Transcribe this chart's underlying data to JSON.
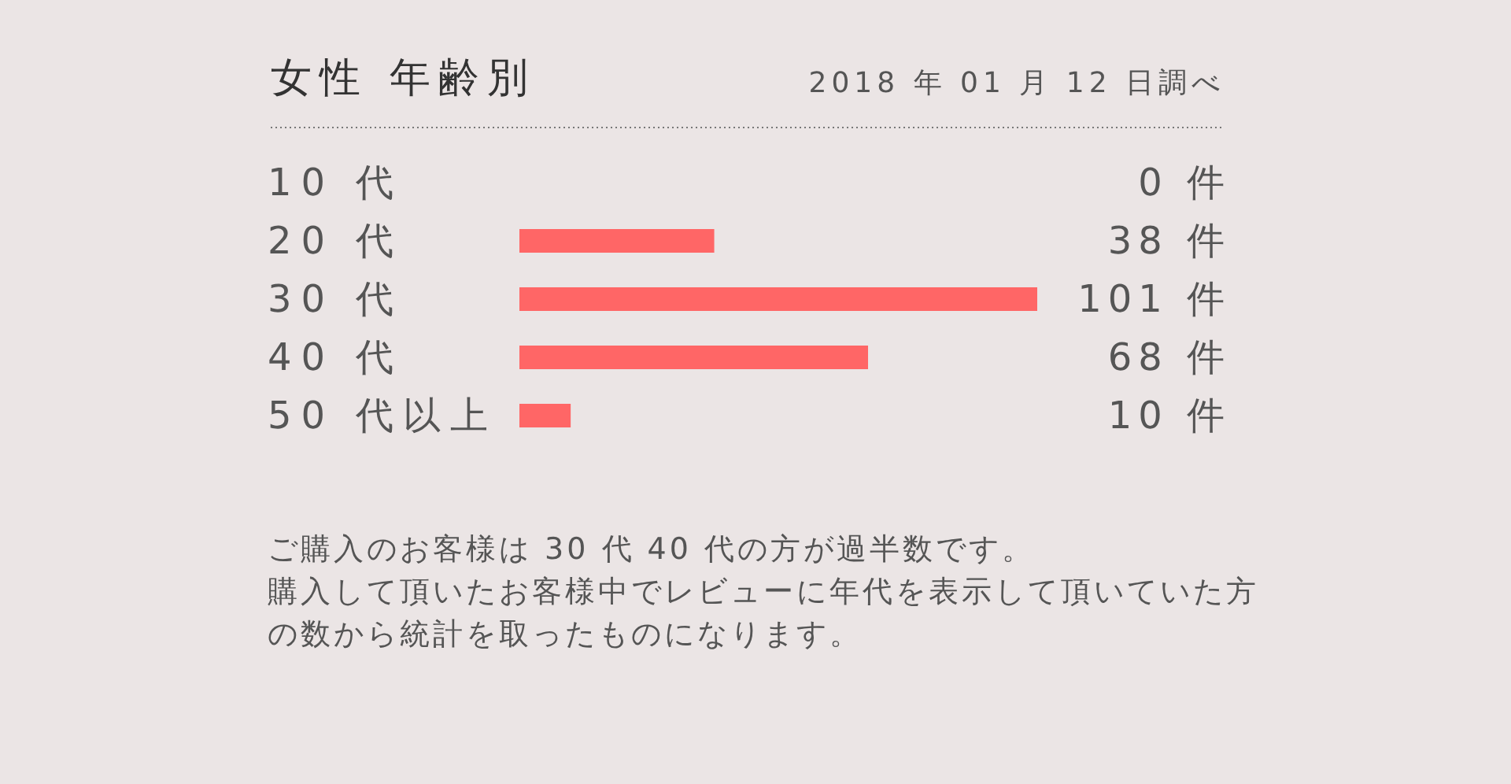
{
  "chart_data": {
    "type": "bar",
    "orientation": "horizontal",
    "title": "女性 年齢別",
    "subtitle": "2018 年 01 月 12 日調べ",
    "categories": [
      "10 代",
      "20 代",
      "30 代",
      "40 代",
      "50 代以上"
    ],
    "values": [
      0,
      38,
      101,
      68,
      10
    ],
    "value_labels": [
      "0 件",
      "38 件",
      "101 件",
      "68 件",
      "10 件"
    ],
    "color": "#ff6666",
    "annotations": [
      "ご購入のお客様は 30 代 40 代の方が過半数です。",
      "購入して頂いたお客様中でレビューに年代を表示して頂いていた方の数から統計を取ったものになります。"
    ]
  }
}
